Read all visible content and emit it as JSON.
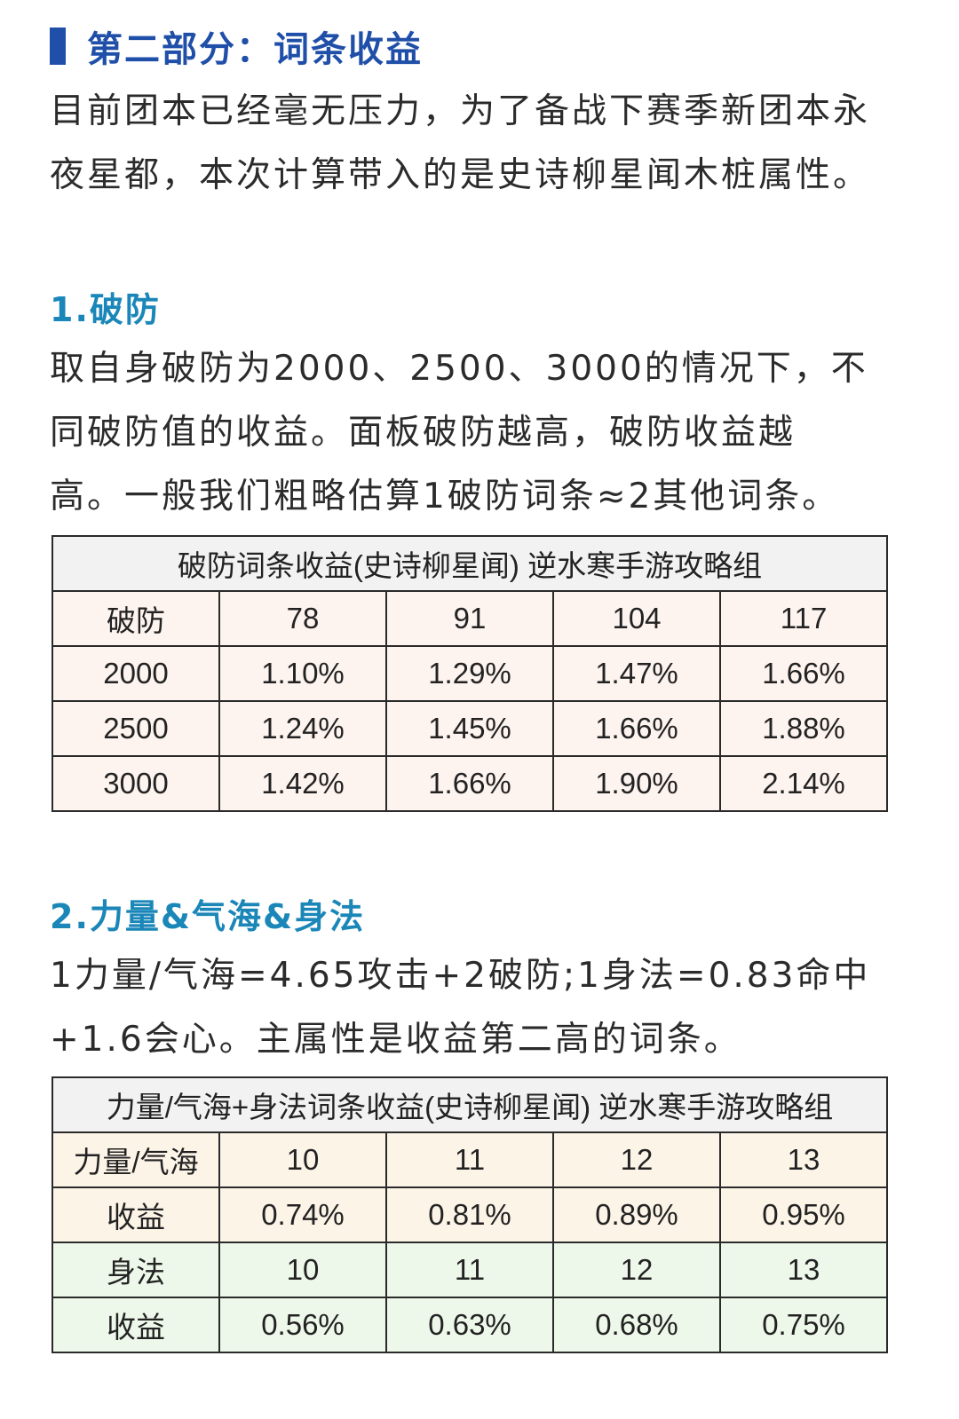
{
  "section": {
    "title": "第二部分：词条收益",
    "intro_line1": "目前团本已经毫无压力，为了备战下赛季新团本永",
    "intro_line2": "夜星都，本次计算带入的是史诗柳星闻木桩属性。"
  },
  "part1": {
    "heading": "1.破防",
    "line1": "取自身破防为2000、2500、3000的情况下，不",
    "line2": "同破防值的收益。面板破防越高，破防收益越",
    "line3": "高。一般我们粗略估算1破防词条≈2其他词条。",
    "table": {
      "caption": "破防词条收益(史诗柳星闻) 逆水寒手游攻略组",
      "header": [
        "破防",
        "78",
        "91",
        "104",
        "117"
      ],
      "rows": [
        [
          "2000",
          "1.10%",
          "1.29%",
          "1.47%",
          "1.66%"
        ],
        [
          "2500",
          "1.24%",
          "1.45%",
          "1.66%",
          "1.88%"
        ],
        [
          "3000",
          "1.42%",
          "1.66%",
          "1.90%",
          "2.14%"
        ]
      ]
    }
  },
  "part2": {
    "heading": "2.力量&气海&身法",
    "line1": "1力量/气海=4.65攻击+2破防;1身法=0.83命中",
    "line2": "+1.6会心。主属性是收益第二高的词条。",
    "table": {
      "caption": "力量/气海+身法词条收益(史诗柳星闻) 逆水寒手游攻略组",
      "rows": [
        [
          "力量/气海",
          "10",
          "11",
          "12",
          "13"
        ],
        [
          "收益",
          "0.74%",
          "0.81%",
          "0.89%",
          "0.95%"
        ],
        [
          "身法",
          "10",
          "11",
          "12",
          "13"
        ],
        [
          "收益",
          "0.56%",
          "0.63%",
          "0.68%",
          "0.75%"
        ]
      ]
    }
  }
}
